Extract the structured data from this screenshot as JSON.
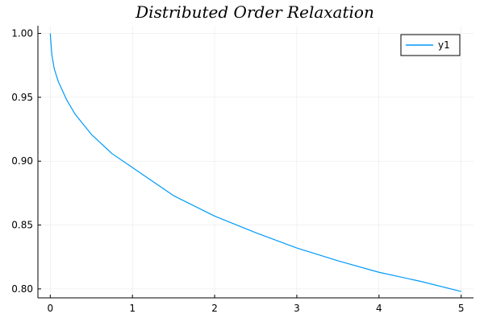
{
  "chart_data": {
    "type": "line",
    "title": "Distributed Order Relaxation",
    "xlabel": "",
    "ylabel": "",
    "xlim": [
      -0.15,
      5.15
    ],
    "ylim": [
      0.793,
      1.006
    ],
    "x_ticks": [
      0,
      1,
      2,
      3,
      4,
      5
    ],
    "x_tick_labels": [
      "0",
      "1",
      "2",
      "3",
      "4",
      "5"
    ],
    "y_ticks": [
      0.8,
      0.85,
      0.9,
      0.95,
      1.0
    ],
    "y_tick_labels": [
      "0.80",
      "0.85",
      "0.90",
      "0.95",
      "1.00"
    ],
    "grid": true,
    "legend_position": "top-right",
    "series": [
      {
        "name": "y1",
        "color": "#009af9",
        "x": [
          0,
          0.02,
          0.05,
          0.1,
          0.2,
          0.3,
          0.5,
          0.75,
          1.0,
          1.5,
          2.0,
          2.5,
          3.0,
          3.5,
          4.0,
          4.5,
          5.0
        ],
        "y": [
          1.0,
          0.983,
          0.972,
          0.962,
          0.948,
          0.937,
          0.921,
          0.906,
          0.895,
          0.873,
          0.857,
          0.844,
          0.832,
          0.822,
          0.813,
          0.806,
          0.798
        ]
      }
    ]
  }
}
